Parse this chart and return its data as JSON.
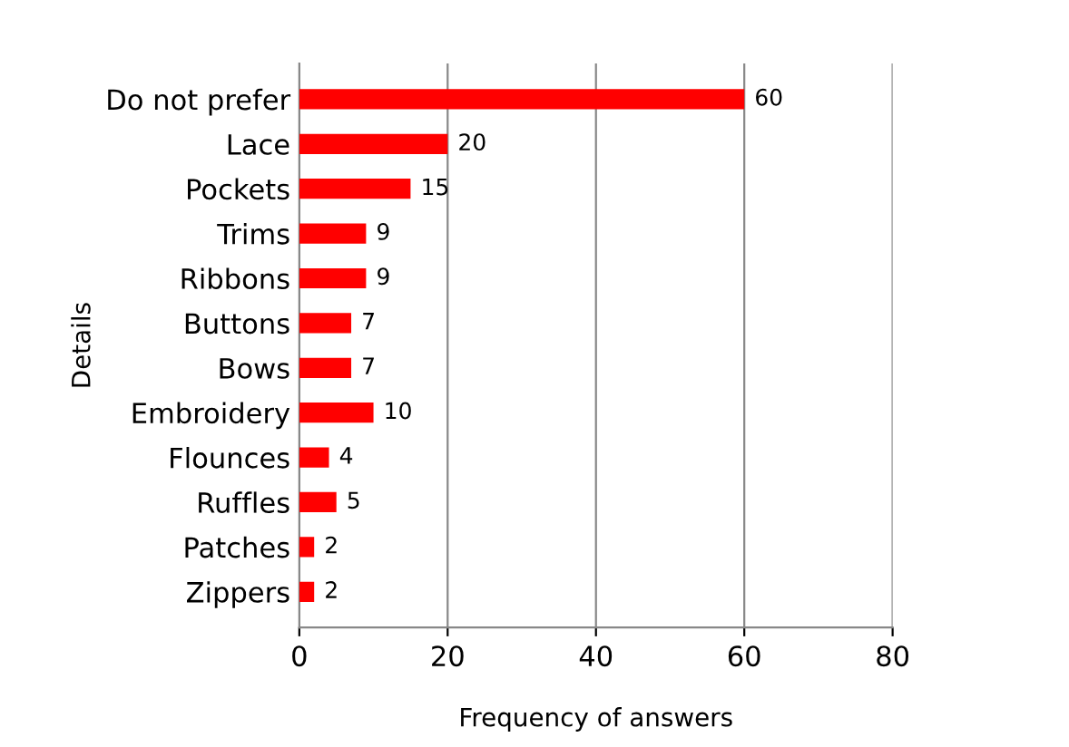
{
  "chart_data": {
    "type": "bar",
    "orientation": "horizontal",
    "xlabel": "Frequency of answers",
    "ylabel": "Details",
    "categories": [
      "Do not prefer",
      "Lace",
      "Pockets",
      "Trims",
      "Ribbons",
      "Buttons",
      "Bows",
      "Embroidery",
      "Flounces",
      "Ruffles",
      "Patches",
      "Zippers"
    ],
    "values": [
      60,
      20,
      15,
      9,
      9,
      7,
      7,
      10,
      4,
      5,
      2,
      2
    ],
    "color": "#ff0000",
    "xlim": [
      0,
      80
    ],
    "xticks": [
      0,
      20,
      40,
      60,
      80
    ],
    "grid": "x",
    "data_labels": true
  }
}
